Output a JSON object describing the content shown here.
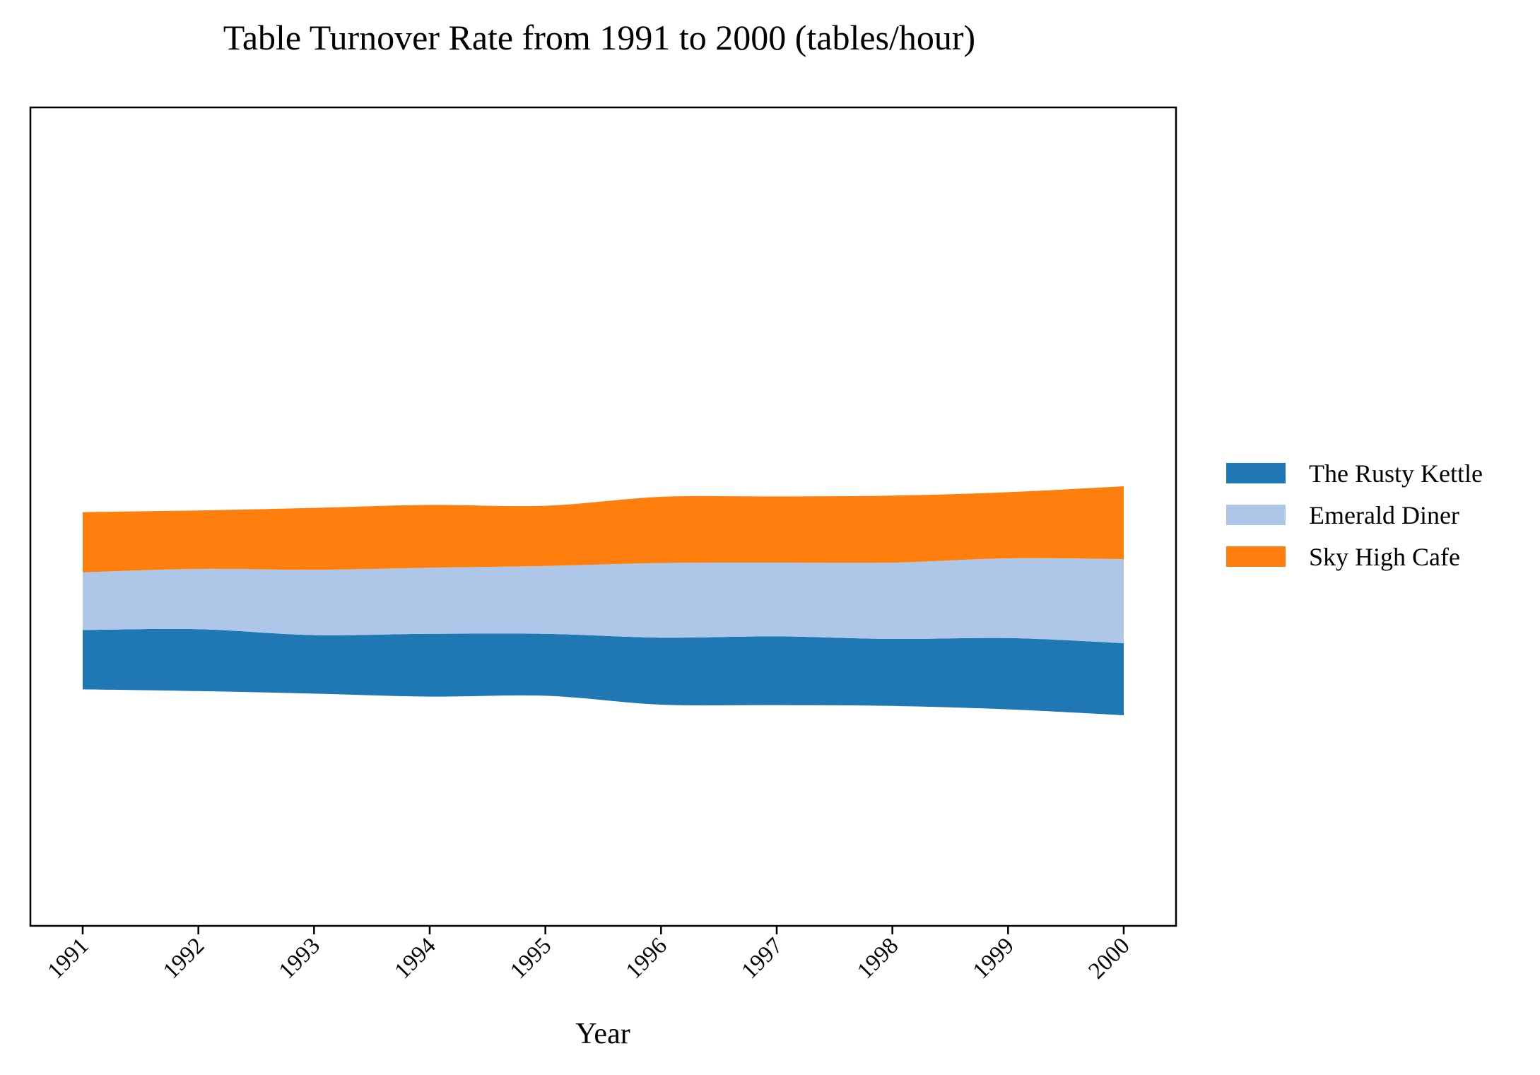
{
  "chart_data": {
    "type": "area",
    "stacking": "streamgraph",
    "title": "Table Turnover Rate from 1991 to 2000 (tables/hour)",
    "xlabel": "Year",
    "ylabel": "",
    "x": [
      "1991",
      "1992",
      "1993",
      "1994",
      "1995",
      "1996",
      "1997",
      "1998",
      "1999",
      "2000"
    ],
    "y_axis_visible": false,
    "grid": false,
    "legend_position": "right",
    "series": [
      {
        "name": "The Rusty Kettle",
        "color": "#1f77b4",
        "values": [
          7.0,
          7.3,
          6.9,
          7.4,
          7.3,
          7.9,
          8.1,
          7.9,
          8.4,
          8.5
        ]
      },
      {
        "name": "Emerald Diner",
        "color": "#aec7e8",
        "values": [
          6.8,
          7.1,
          7.7,
          7.8,
          8.0,
          8.8,
          8.7,
          9.0,
          9.4,
          9.9
        ]
      },
      {
        "name": "Sky High Cafe",
        "color": "#ff7f0e",
        "values": [
          7.1,
          6.9,
          7.3,
          7.4,
          7.1,
          7.8,
          7.8,
          7.9,
          7.8,
          8.6
        ]
      }
    ]
  }
}
